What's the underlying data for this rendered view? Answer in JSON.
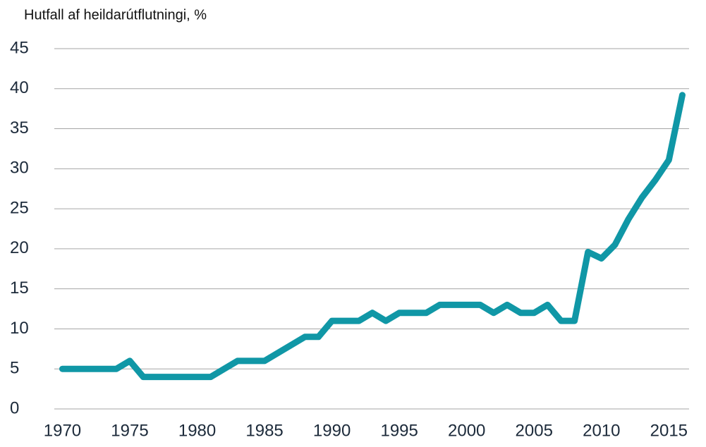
{
  "chart_data": {
    "type": "line",
    "title": "Hutfall af heildarútflutningi, %",
    "x": [
      1970,
      1971,
      1972,
      1973,
      1974,
      1975,
      1976,
      1977,
      1978,
      1979,
      1980,
      1981,
      1982,
      1983,
      1984,
      1985,
      1986,
      1987,
      1988,
      1989,
      1990,
      1991,
      1992,
      1993,
      1994,
      1995,
      1996,
      1997,
      1998,
      1999,
      2000,
      2001,
      2002,
      2003,
      2004,
      2005,
      2006,
      2007,
      2008,
      2009,
      2010,
      2011,
      2012,
      2013,
      2014,
      2015,
      2016
    ],
    "series": [
      {
        "color": "#1097a6",
        "values": [
          5,
          5,
          5,
          5,
          5,
          6,
          4,
          4,
          4,
          4,
          4,
          4,
          5,
          6,
          6,
          6,
          7,
          8,
          9,
          9,
          11,
          11,
          11,
          12,
          11,
          12,
          12,
          12,
          13,
          13,
          13,
          13,
          12,
          13,
          12,
          12,
          13,
          11,
          11,
          19.6,
          18.8,
          20.5,
          23.7,
          26.4,
          28.6,
          31.1,
          39.2
        ]
      }
    ],
    "xlim": [
      1969.4,
      2016.5
    ],
    "xticks": [
      1970,
      1975,
      1980,
      1985,
      1990,
      1995,
      2000,
      2005,
      2010,
      2015
    ],
    "ylim": [
      0,
      45
    ],
    "yticks": [
      0,
      5,
      10,
      15,
      20,
      25,
      30,
      35,
      40,
      45
    ],
    "grid": true
  }
}
